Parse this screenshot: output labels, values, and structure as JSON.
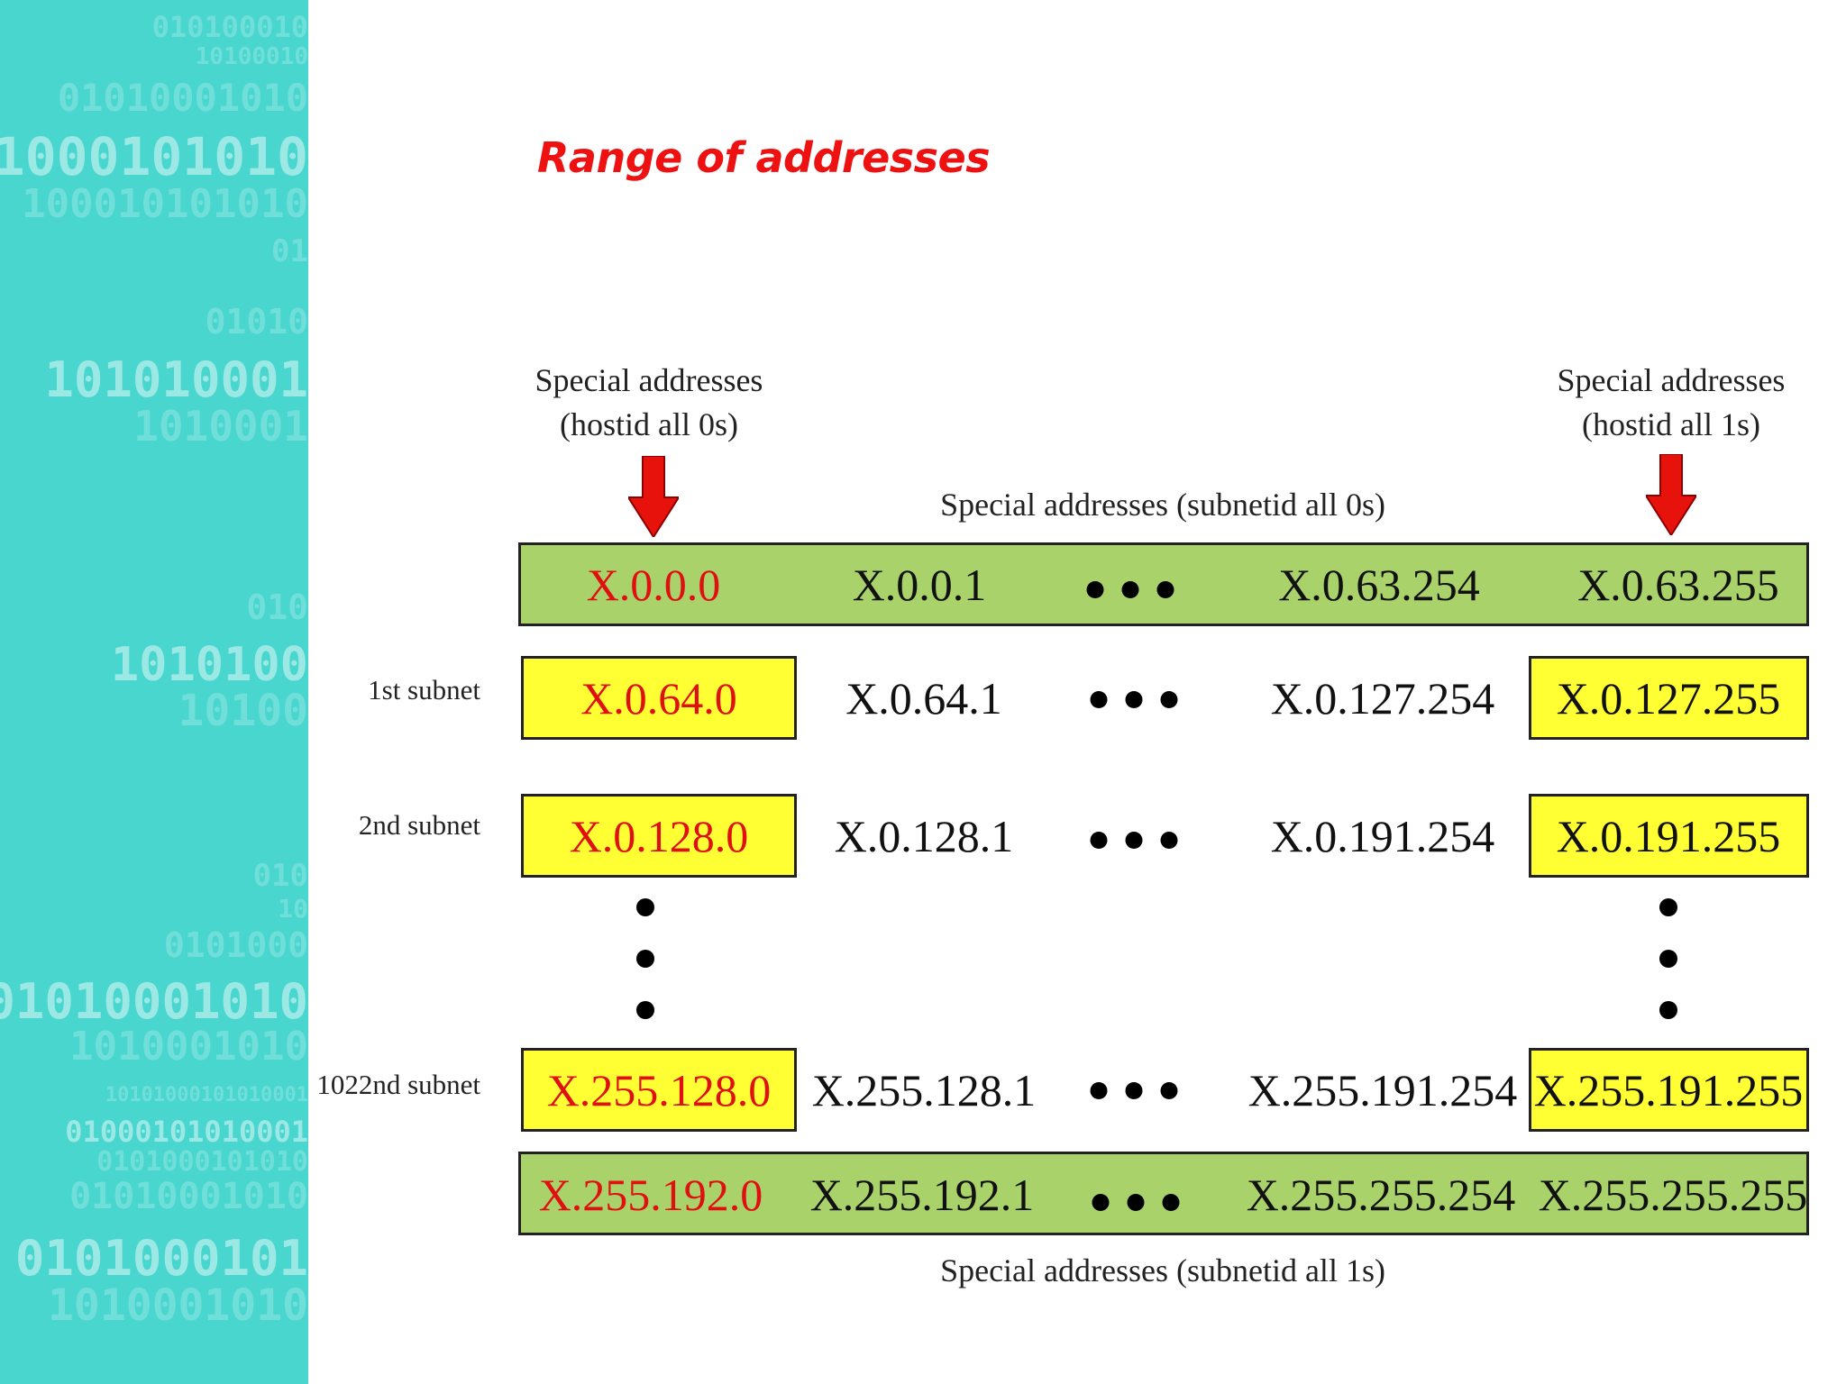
{
  "slide": {
    "title": "Range of addresses"
  },
  "diagram": {
    "special_hostid_0s": {
      "line1": "Special addresses",
      "line2": "(hostid all 0s)"
    },
    "special_hostid_1s": {
      "line1": "Special addresses",
      "line2": "(hostid all 1s)"
    },
    "special_subnetid_0s": "Special addresses (subnetid all 0s)",
    "special_subnetid_1s": "Special addresses (subnetid all 1s)",
    "rows": [
      {
        "label": "",
        "addresses": [
          "X.0.0.0",
          "X.0.0.1",
          "X.0.63.254",
          "X.0.63.255"
        ]
      },
      {
        "label": "1st subnet",
        "addresses": [
          "X.0.64.0",
          "X.0.64.1",
          "X.0.127.254",
          "X.0.127.255"
        ]
      },
      {
        "label": "2nd subnet",
        "addresses": [
          "X.0.128.0",
          "X.0.128.1",
          "X.0.191.254",
          "X.0.191.255"
        ]
      },
      {
        "label": "1022nd subnet",
        "addresses": [
          "X.255.128.0",
          "X.255.128.1",
          "X.255.191.254",
          "X.255.191.255"
        ]
      },
      {
        "label": "",
        "addresses": [
          "X.255.192.0",
          "X.255.192.1",
          "X.255.255.254",
          "X.255.255.255"
        ]
      }
    ],
    "colors": {
      "special_subnet_bar": "#a9d26b",
      "special_host_box": "#ffff33",
      "red_text": "#e01010",
      "arrow": "#e8120c",
      "title": "#ee1111"
    }
  },
  "decor": {
    "binary_lines": [
      "010100010",
      "10100010",
      "01010001010",
      "1000101010",
      "100010101010",
      "01",
      "01010",
      "101010001",
      "1010001",
      "010",
      "1010100",
      "10100",
      "010",
      "10",
      "0101000",
      "01010001010",
      "1010001010",
      "10101000101010001",
      "01000101010001",
      "0101000101010",
      "01010001010",
      "0101000101",
      "1010001010"
    ]
  }
}
